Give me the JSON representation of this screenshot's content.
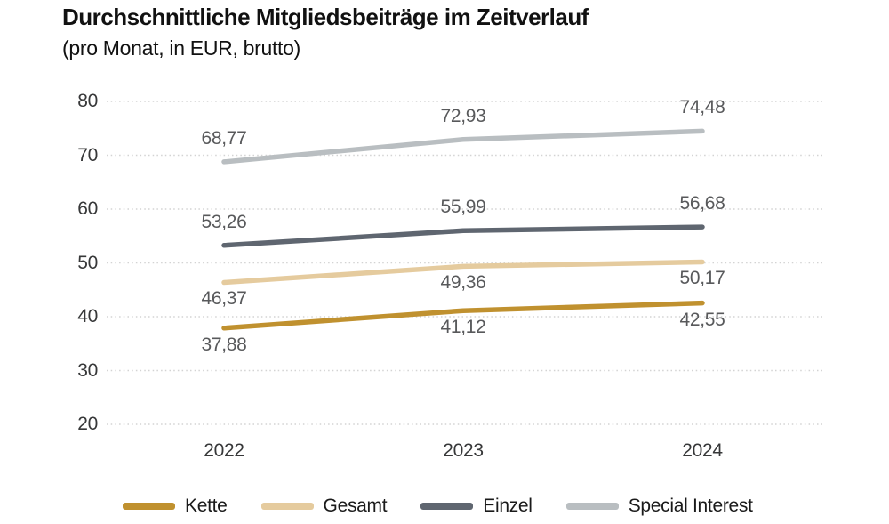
{
  "title": "Durchschnittliche Mitgliedsbeiträge im Zeitverlauf",
  "subtitle": "(pro Monat, in EUR, brutto)",
  "chart_data": {
    "type": "line",
    "title": "Durchschnittliche Mitgliedsbeiträge im Zeitverlauf",
    "subtitle": "(pro Monat, in EUR, brutto)",
    "categories": [
      "2022",
      "2023",
      "2024"
    ],
    "series": [
      {
        "name": "Kette",
        "values": [
          37.88,
          41.12,
          42.55
        ],
        "display_labels": [
          "37,88",
          "41,12",
          "42,55"
        ],
        "color": "#c0912f",
        "label_position": "below"
      },
      {
        "name": "Gesamt",
        "values": [
          46.37,
          49.36,
          50.17
        ],
        "display_labels": [
          "46,37",
          "49,36",
          "50,17"
        ],
        "color": "#e5cb9e",
        "label_position": "below"
      },
      {
        "name": "Einzel",
        "values": [
          53.26,
          55.99,
          56.68
        ],
        "display_labels": [
          "53,26",
          "55,99",
          "56,68"
        ],
        "color": "#5f6670",
        "label_position": "above"
      },
      {
        "name": "Special Interest",
        "values": [
          68.77,
          72.93,
          74.48
        ],
        "display_labels": [
          "68,77",
          "72,93",
          "74,48"
        ],
        "color": "#b9bec1",
        "label_position": "above"
      }
    ],
    "y_ticks": [
      "80",
      "70",
      "60",
      "50",
      "40",
      "30",
      "20"
    ],
    "ylim": [
      20,
      80
    ],
    "xlabel": "",
    "ylabel": "",
    "grid": "horizontal-dotted",
    "gridline_color": "#d3d3d3",
    "legend_position": "bottom",
    "legend_entries": [
      "Kette",
      "Gesamt",
      "Einzel",
      "Special Interest"
    ]
  }
}
